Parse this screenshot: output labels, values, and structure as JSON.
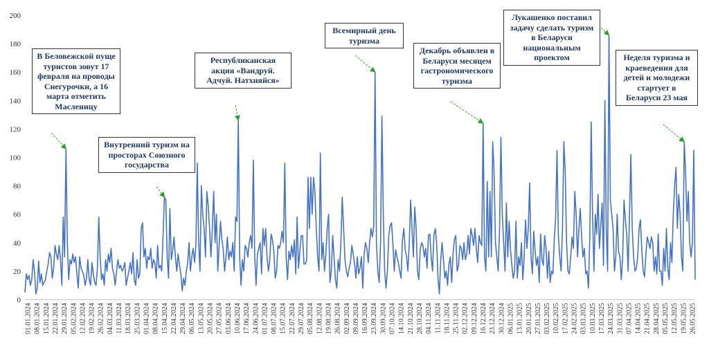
{
  "chart_data": {
    "type": "line",
    "title": "",
    "xlabel": "",
    "ylabel": "",
    "ylim": [
      0,
      200
    ],
    "yticks": [
      0,
      20,
      40,
      60,
      80,
      100,
      120,
      140,
      160,
      180,
      200
    ],
    "grid": false,
    "line_color": "#4472c4",
    "arrow_color": "#2ca02c",
    "x_tick_labels": [
      "01.01.2024",
      "08.01.2024",
      "15.01.2024",
      "22.01.2024",
      "29.01.2024",
      "05.02.2024",
      "12.02.2024",
      "19.02.2024",
      "26.02.2024",
      "04.03.2024",
      "11.03.2024",
      "18.03.2024",
      "25.03.2024",
      "01.04.2024",
      "08.04.2024",
      "15.04.2024",
      "22.04.2024",
      "29.04.2024",
      "06.05.2024",
      "13.05.2024",
      "20.05.2024",
      "27.05.2024",
      "03.06.2024",
      "10.06.2024",
      "17.06.2024",
      "24.06.2024",
      "01.07.2024",
      "08.07.2024",
      "15.07.2024",
      "22.07.2024",
      "29.07.2024",
      "05.08.2024",
      "12.08.2024",
      "19.08.2024",
      "26.08.2024",
      "02.09.2024",
      "09.09.2024",
      "16.09.2024",
      "23.09.2024",
      "30.09.2024",
      "07.10.2024",
      "14.10.2024",
      "21.10.2024",
      "28.10.2024",
      "04.11.2024",
      "11.11.2024",
      "18.11.2024",
      "25.11.2024",
      "02.12.2024",
      "09.12.2024",
      "16.12.2024",
      "23.12.2024",
      "30.12.2024",
      "06.01.2025",
      "13.01.2025",
      "20.01.2025",
      "27.01.2025",
      "03.02.2025",
      "10.02.2025",
      "17.02.2025",
      "24.02.2025",
      "03.03.2025",
      "10.03.2025",
      "17.03.2025",
      "24.03.2025",
      "31.03.2025",
      "07.04.2025",
      "14.04.2025",
      "21.04.2025",
      "28.04.2025",
      "05.05.2025",
      "12.05.2025",
      "19.05.2025",
      "26.05.2025"
    ],
    "series": [
      {
        "values": [
          5,
          18,
          14,
          17,
          10,
          14,
          28,
          20,
          4,
          8,
          27,
          12,
          18,
          10,
          12,
          14,
          20,
          25,
          33,
          30,
          15,
          22,
          38,
          32,
          28,
          38,
          28,
          10,
          58,
          30,
          106,
          40,
          14,
          28,
          25,
          32,
          26,
          30,
          18,
          8,
          30,
          22,
          20,
          17,
          10,
          15,
          28,
          14,
          10,
          26,
          18,
          12,
          10,
          22,
          58,
          30,
          14,
          18,
          10,
          28,
          20,
          32,
          26,
          36,
          22,
          18,
          10,
          20,
          28,
          22,
          24,
          20,
          22,
          26,
          10,
          15,
          20,
          26,
          18,
          33,
          14,
          10,
          28,
          15,
          18,
          50,
          54,
          30,
          36,
          22,
          30,
          28,
          36,
          22,
          28,
          26,
          15,
          38,
          22,
          24,
          20,
          45,
          72,
          70,
          30,
          15,
          64,
          28,
          34,
          44,
          30,
          20,
          32,
          24,
          18,
          6,
          15,
          10,
          20,
          26,
          40,
          20,
          30,
          36,
          26,
          38,
          96,
          40,
          20,
          80,
          60,
          50,
          30,
          76,
          66,
          50,
          30,
          50,
          76,
          40,
          60,
          20,
          38,
          55,
          42,
          35,
          20,
          30,
          44,
          28,
          34,
          30,
          40,
          20,
          58,
          55,
          126,
          30,
          10,
          28,
          20,
          38,
          36,
          30,
          40,
          45,
          36,
          98,
          30,
          10,
          32,
          36,
          40,
          18,
          50,
          38,
          50,
          30,
          20,
          28,
          46,
          42,
          34,
          15,
          20,
          38,
          36,
          40,
          48,
          40,
          96,
          30,
          14,
          34,
          28,
          38,
          30,
          42,
          18,
          58,
          22,
          34,
          45,
          45,
          25,
          25,
          28,
          86,
          50,
          86,
          60,
          86,
          76,
          50,
          30,
          20,
          103,
          28,
          40,
          20,
          32,
          50,
          60,
          12,
          20,
          45,
          30,
          14,
          8,
          28,
          20,
          40,
          72,
          50,
          28,
          20,
          16,
          22,
          26,
          38,
          32,
          25,
          15,
          30,
          18,
          22,
          30,
          8,
          32,
          40,
          36,
          26,
          40,
          50,
          44,
          52,
          160,
          40,
          20,
          12,
          40,
          129,
          60,
          20,
          8,
          20,
          45,
          52,
          54,
          40,
          20,
          35,
          30,
          26,
          20,
          15,
          42,
          50,
          35,
          30,
          20,
          40,
          70,
          50,
          30,
          65,
          50,
          20,
          14,
          35,
          40,
          38,
          30,
          36,
          22,
          45,
          46,
          30,
          20,
          45,
          50,
          40,
          15,
          4,
          28,
          40,
          28,
          15,
          20,
          10,
          25,
          30,
          12,
          32,
          42,
          45,
          20,
          24,
          38,
          36,
          28,
          40,
          28,
          32,
          45,
          32,
          50,
          45,
          38,
          50,
          36,
          26,
          45,
          40,
          38,
          124,
          30,
          20,
          83,
          30,
          76,
          30,
          111,
          90,
          40,
          30,
          20,
          50,
          114,
          60,
          40,
          20,
          68,
          30,
          55,
          35,
          24,
          15,
          20,
          55,
          15,
          30,
          24,
          40,
          14,
          30,
          56,
          36,
          50,
          82,
          30,
          18,
          48,
          34,
          24,
          30,
          12,
          46,
          28,
          24,
          45,
          36,
          15,
          34,
          12,
          20,
          18,
          42,
          58,
          105,
          45,
          30,
          20,
          50,
          111,
          90,
          40,
          20,
          18,
          30,
          44,
          36,
          76,
          60,
          30,
          50,
          64,
          44,
          30,
          36,
          18,
          20,
          8,
          45,
          125,
          60,
          20,
          60,
          46,
          74,
          36,
          52,
          68,
          24,
          140,
          50,
          20,
          186,
          70,
          60,
          50,
          20,
          30,
          60,
          34,
          30,
          14,
          30,
          70,
          56,
          45,
          20,
          60,
          102,
          50,
          30,
          20,
          22,
          30,
          50,
          56,
          35,
          20,
          16,
          32,
          44,
          40,
          36,
          44,
          40,
          20,
          30,
          18,
          46,
          20,
          20,
          10,
          36,
          20,
          50,
          22,
          14,
          40,
          26,
          60,
          80,
          93,
          50,
          74,
          60,
          30,
          20,
          111,
          90,
          55,
          76,
          40,
          30,
          40,
          105,
          14
        ]
      }
    ],
    "annotations": [
      {
        "text": "В Беловежской пуще туристов зовут 17 февраля на проводы Снегурочки, а 16 марта отметить Масленицу"
      },
      {
        "text": "Внутренний туризм на просторах Союзного государства"
      },
      {
        "text": "Республиканская акция «Вандруй. Адчуй. Натхняйся»"
      },
      {
        "text": "Всемирный день туризма"
      },
      {
        "text": "Декабрь объявлен в Беларуси месяцем гастрономического туризма"
      },
      {
        "text": "Лукашенко поставил задачу сделать туризм в Беларуси национальным проектом"
      },
      {
        "text": "Неделя туризма и краеведения для детей и молодежи стартует в Беларуси 23 мая"
      }
    ]
  }
}
